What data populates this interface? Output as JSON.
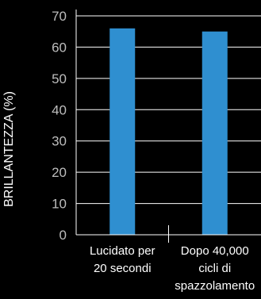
{
  "chart_data": {
    "type": "bar",
    "title": "",
    "ylabel": "BRILLANTEZZA (%)",
    "xlabel": "",
    "categories": [
      "Lucidato per 20 secondi",
      "Dopo 40,000 cicli di spazzolamento"
    ],
    "category_lines": [
      [
        "Lucidato per",
        "20 secondi"
      ],
      [
        "Dopo 40,000",
        "cicli di",
        "spazzolamento"
      ]
    ],
    "values": [
      66,
      65
    ],
    "ylim": [
      0,
      70
    ],
    "yticks": [
      0,
      10,
      20,
      30,
      40,
      50,
      60,
      70
    ],
    "grid": true,
    "legend": "none",
    "colors": {
      "bar": "#2f8fd0",
      "grid": "#ffffff",
      "text": "#ffffff",
      "tick_text": "#bdbdbd",
      "background": "#000000"
    }
  }
}
